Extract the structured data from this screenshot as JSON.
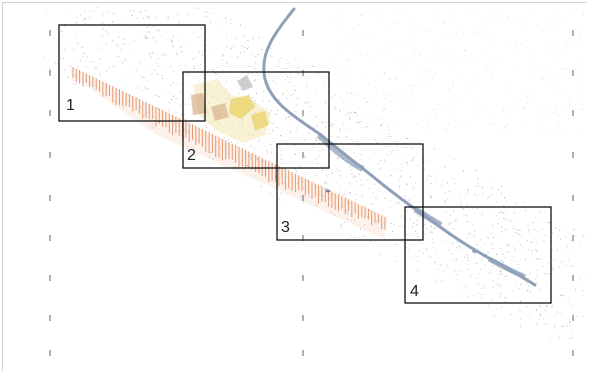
{
  "map": {
    "colors": {
      "background": "#ffffff",
      "frame": "#d2d2d2",
      "river": "#8fa0b8",
      "river_light": "#b8c4d3",
      "speckle": "#9a9a9a",
      "orchard": "#e38a5c",
      "settlement_yellow": "#ead36a",
      "settlement_tan": "#cfa27a",
      "settlement_gray": "#b9b9b9",
      "tile_border": "#111111",
      "grid_tick": "#222222"
    },
    "tiles": [
      {
        "label": "1"
      },
      {
        "label": "2"
      },
      {
        "label": "3"
      },
      {
        "label": "4"
      }
    ]
  }
}
